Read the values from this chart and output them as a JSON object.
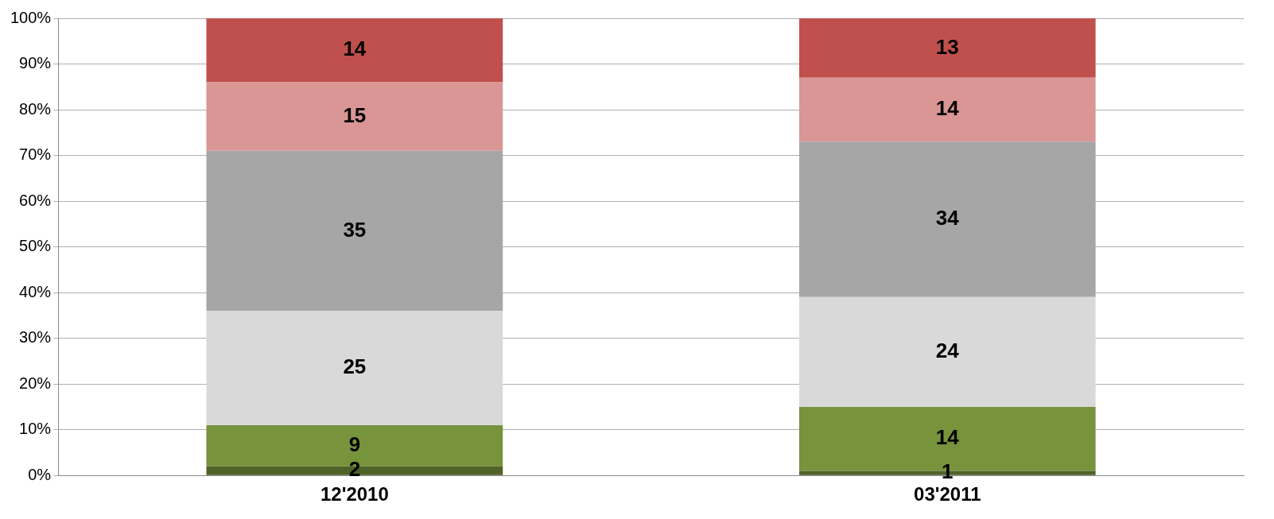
{
  "chart_data": {
    "type": "bar",
    "stacked": true,
    "categories": [
      "12'2010",
      "03'2011"
    ],
    "series": [
      {
        "color": "#4f6228",
        "values": [
          2,
          1
        ]
      },
      {
        "color": "#77933c",
        "values": [
          9,
          14
        ]
      },
      {
        "color": "#d9d9d9",
        "values": [
          25,
          24
        ]
      },
      {
        "color": "#a6a6a6",
        "values": [
          35,
          34
        ]
      },
      {
        "color": "#d99694",
        "values": [
          15,
          14
        ]
      },
      {
        "color": "#c0504d",
        "values": [
          14,
          13
        ]
      }
    ],
    "ylim": [
      0,
      100
    ],
    "yticks": [
      {
        "value": 0,
        "label": "0%"
      },
      {
        "value": 10,
        "label": "10%"
      },
      {
        "value": 20,
        "label": "20%"
      },
      {
        "value": 30,
        "label": "30%"
      },
      {
        "value": 40,
        "label": "40%"
      },
      {
        "value": 50,
        "label": "50%"
      },
      {
        "value": 60,
        "label": "60%"
      },
      {
        "value": 70,
        "label": "70%"
      },
      {
        "value": 80,
        "label": "80%"
      },
      {
        "value": 90,
        "label": "90%"
      },
      {
        "value": 100,
        "label": "100%"
      }
    ],
    "grid": "y",
    "legend": false,
    "data_labels": true
  }
}
